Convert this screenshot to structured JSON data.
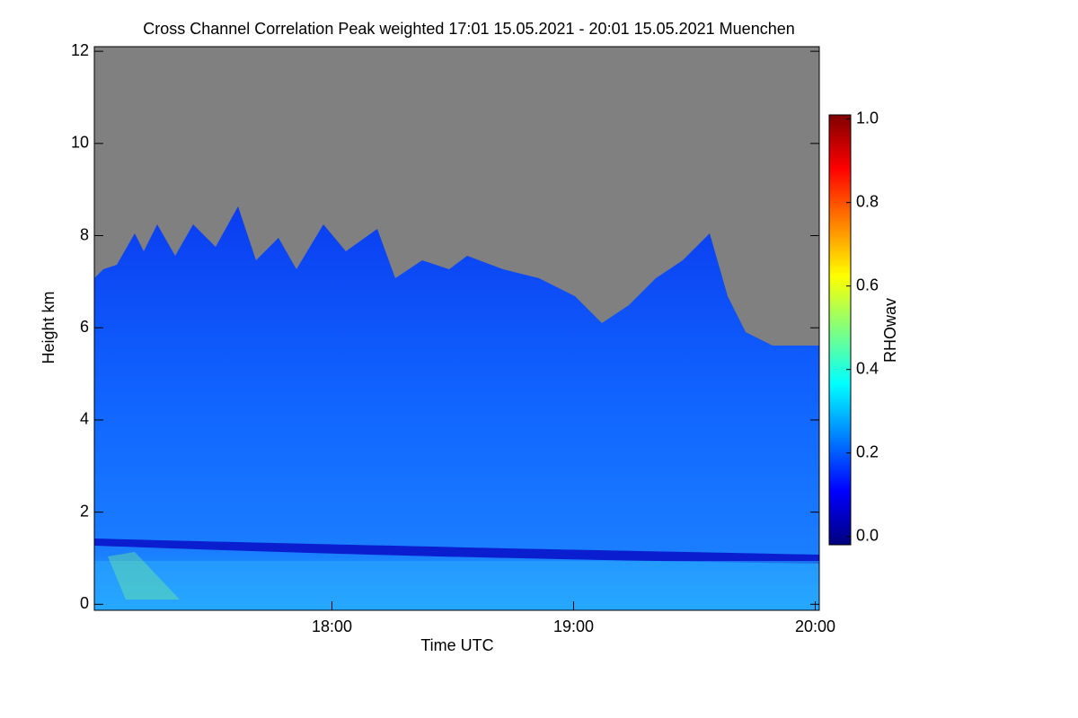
{
  "chart_data": {
    "type": "heatmap",
    "title": "Cross Channel Correlation Peak weighted   17:01 15.05.2021 - 20:01 15.05.2021 Muenchen",
    "x_label": "Time UTC",
    "y_label": "Height km",
    "colorbar_label": "RHOwav",
    "xlim": [
      17.0167,
      20.0167
    ],
    "xticks": [
      {
        "value": 18,
        "label": "18:00"
      },
      {
        "value": 19,
        "label": "19:00"
      },
      {
        "value": 20,
        "label": "20:00"
      }
    ],
    "ylim": [
      -0.13,
      12.1
    ],
    "yticks": [
      0,
      2,
      4,
      6,
      8,
      10,
      12
    ],
    "clim": [
      -0.02,
      1.01
    ],
    "cticks": [
      {
        "value": 0,
        "label": "0.0"
      },
      {
        "value": 0.2,
        "label": "0.2"
      },
      {
        "value": 0.4,
        "label": "0.4"
      },
      {
        "value": 0.6,
        "label": "0.6"
      },
      {
        "value": 0.8,
        "label": "0.8"
      },
      {
        "value": 1,
        "label": "1.0"
      }
    ],
    "colormap": [
      "#00007f",
      "#0000ff",
      "#0080ff",
      "#00ffff",
      "#80ff80",
      "#ffff00",
      "#ff8000",
      "#ff0000",
      "#800000"
    ],
    "missing_color": "#808080"
  }
}
